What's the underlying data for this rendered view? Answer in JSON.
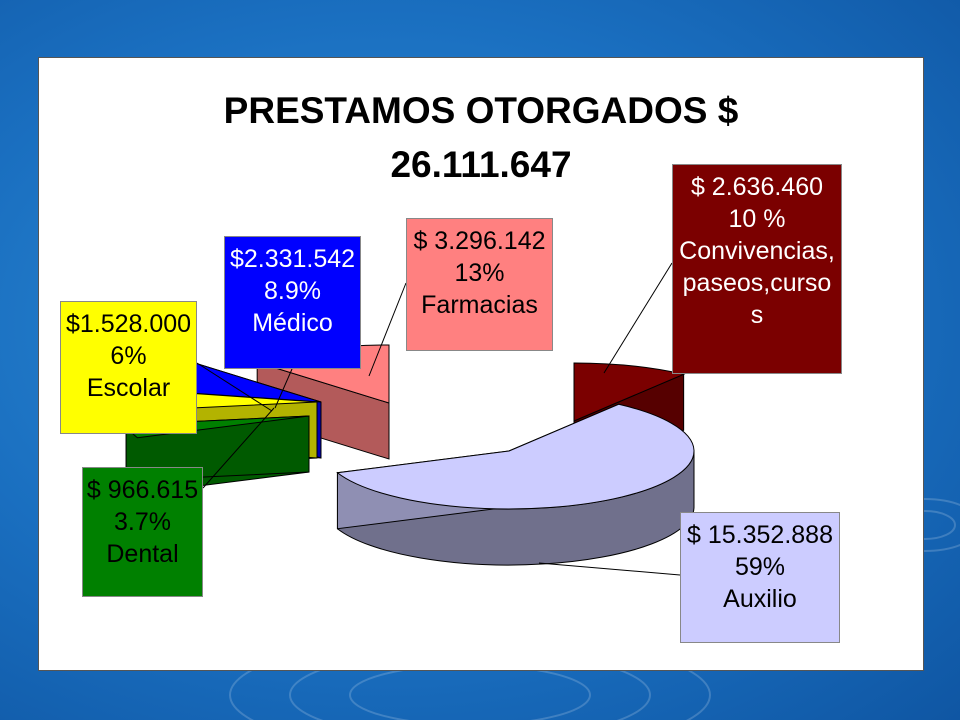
{
  "chart_data": {
    "type": "pie",
    "title_line1": "PRESTAMOS OTORGADOS $",
    "title_line2": "26.111.647",
    "slices": [
      {
        "name": "Convivencias, paseos,cursos",
        "value": 2636460,
        "percent": 10,
        "color": "#7b0000",
        "label_lines": [
          "$ 2.636.460",
          "10 %",
          "Convivencias,",
          "paseos,curso",
          "s"
        ]
      },
      {
        "name": "Auxilio",
        "value": 15352888,
        "percent": 59,
        "color": "#ccccff",
        "label_lines": [
          "$ 15.352.888",
          "59%",
          "Auxilio"
        ]
      },
      {
        "name": "Dental",
        "value": 966615,
        "percent": 3.7,
        "color": "#008000",
        "label_lines": [
          "$ 966.615",
          "3.7%",
          "Dental"
        ]
      },
      {
        "name": "Escolar",
        "value": 1528000,
        "percent": 6,
        "color": "#ffff00",
        "label_lines": [
          "$1.528.000",
          "6%",
          "Escolar"
        ]
      },
      {
        "name": "Médico",
        "value": 2331542,
        "percent": 8.9,
        "color": "#0000ff",
        "label_lines": [
          "$2.331.542",
          "8.9%",
          "Médico"
        ]
      },
      {
        "name": "Farmacias",
        "value": 3296142,
        "percent": 13,
        "color": "#ff8080",
        "label_lines": [
          "$ 3.296.142",
          "13%",
          "Farmacias"
        ]
      }
    ]
  }
}
